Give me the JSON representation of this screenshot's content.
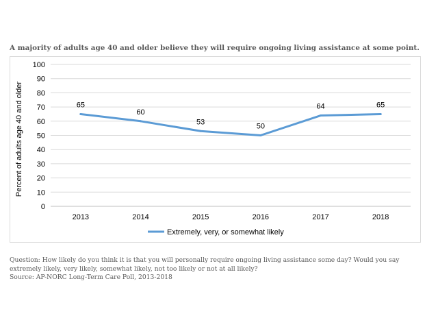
{
  "title": "A majority of adults age 40 and older believe they will require ongoing living assistance at some point.",
  "chart_data": {
    "type": "line",
    "categories": [
      "2013",
      "2014",
      "2015",
      "2016",
      "2017",
      "2018"
    ],
    "series": [
      {
        "name": "Extremely, very, or somewhat likely",
        "values": [
          65,
          60,
          53,
          50,
          64,
          65
        ],
        "color": "#5b9bd5"
      }
    ],
    "data_labels": [
      "65",
      "60",
      "53",
      "50",
      "64",
      "65"
    ],
    "ylabel": "Percent of adults age 40 and older",
    "xlabel": "",
    "ylim": [
      0,
      100
    ],
    "yticks": [
      0,
      10,
      20,
      30,
      40,
      50,
      60,
      70,
      80,
      90,
      100
    ],
    "grid": true,
    "legend_position": "bottom"
  },
  "footnote": {
    "question_line1": "Question: How likely do you think it is that you will personally require ongoing living assistance some day?  Would you say",
    "question_line2": "extremely likely, very likely, somewhat likely, not too likely or not at all likely?",
    "source": "Source: AP-NORC Long-Term Care Poll, 2013-2018"
  }
}
